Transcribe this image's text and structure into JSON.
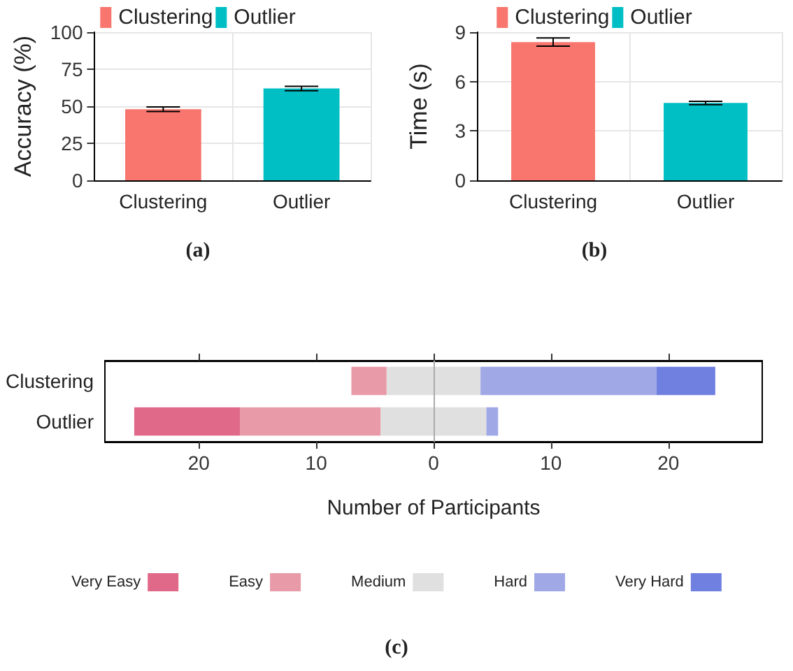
{
  "chart_data": [
    {
      "type": "bar",
      "categories": [
        "Clustering",
        "Outlier"
      ],
      "ylabel": "Accuracy (%)",
      "ylim": [
        0,
        100
      ],
      "yticks": [
        0,
        25,
        50,
        75,
        100
      ],
      "grid": true,
      "legend": "top",
      "stacked": true,
      "annotations": [
        "(a)"
      ],
      "series": [
        {
          "name": "Clustering",
          "color": "#f8766d",
          "values": [
            48,
            null
          ],
          "errors": [
            1.5,
            null
          ]
        },
        {
          "name": "Outlier",
          "color": "#00bfc4",
          "values": [
            null,
            62
          ],
          "errors": [
            null,
            1.5
          ]
        }
      ]
    },
    {
      "type": "bar",
      "categories": [
        "Clustering",
        "Outlier"
      ],
      "ylabel": "Time (s)",
      "ylim": [
        0,
        9
      ],
      "yticks": [
        0,
        3,
        6,
        9
      ],
      "grid": true,
      "legend": "top",
      "stacked": true,
      "annotations": [
        "(b)"
      ],
      "series": [
        {
          "name": "Clustering",
          "color": "#f8766d",
          "values": [
            8.4,
            null
          ],
          "errors": [
            0.25,
            null
          ]
        },
        {
          "name": "Outlier",
          "color": "#00bfc4",
          "values": [
            null,
            4.7
          ],
          "errors": [
            null,
            0.1
          ]
        }
      ]
    },
    {
      "type": "bar",
      "orientation": "horizontal",
      "categories": [
        "Clustering",
        "Outlier"
      ],
      "xlabel": "Number of Participants",
      "xlim": [
        -28,
        28
      ],
      "xticks": [
        {
          "value": -20,
          "label": "20"
        },
        {
          "value": -10,
          "label": "10"
        },
        0,
        10,
        20
      ],
      "tick_labels": "x",
      "legend": "bottom",
      "annotations": [
        "(c)"
      ],
      "ref_lines": [
        {
          "axis": "x",
          "value": 0,
          "color": "#aaaaaa"
        }
      ],
      "series": [
        {
          "name": "Very Easy",
          "color": "#e0698a",
          "base": [
            null,
            -25.5
          ],
          "values": [
            null,
            9
          ]
        },
        {
          "name": "Easy",
          "color": "#e89aa8",
          "base": [
            -7,
            -16.5
          ],
          "values": [
            3,
            12
          ]
        },
        {
          "name": "Medium",
          "color": "#e0e0e0",
          "base": [
            -4,
            -4.5
          ],
          "values": [
            8,
            9
          ]
        },
        {
          "name": "Hard",
          "color": "#a0a8e6",
          "base": [
            4,
            4.5
          ],
          "values": [
            15,
            1
          ]
        },
        {
          "name": "Very Hard",
          "color": "#7080e0",
          "base": [
            19,
            null
          ],
          "values": [
            5,
            null
          ]
        }
      ]
    }
  ]
}
